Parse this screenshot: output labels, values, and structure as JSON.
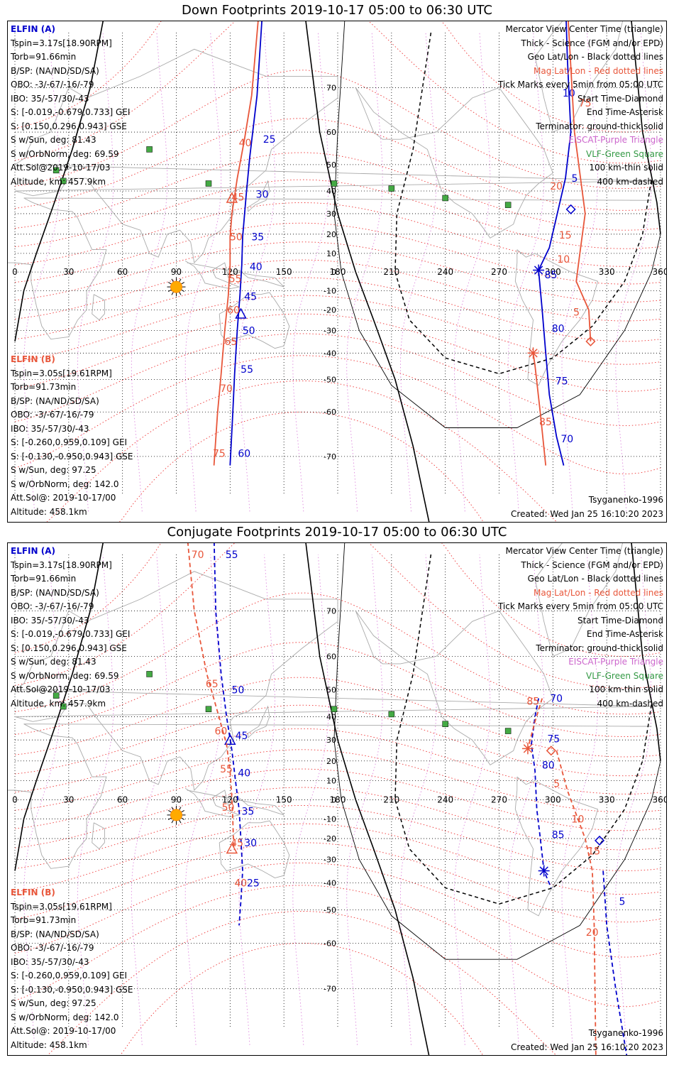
{
  "chart_data": [
    {
      "type": "map",
      "title": "Down Footprints 2019-10-17 05:00 to 06:30 UTC",
      "projection": "Mercator",
      "xlim": [
        0,
        360
      ],
      "lon_ticks": [
        "0",
        "30",
        "60",
        "90",
        "120",
        "150",
        "180",
        "210",
        "240",
        "270",
        "300",
        "330",
        "360"
      ],
      "lat_ticks": [
        "70",
        "60",
        "50",
        "40",
        "30",
        "20",
        "10",
        "0",
        "-10",
        "-20",
        "-30",
        "-40",
        "-50",
        "-60",
        "-70"
      ],
      "info_a": [
        "ELFIN (A)",
        "Tspin=3.17s[18.90RPM]",
        "Torb=91.66min",
        "B/SP: (NA/ND/SD/SA)",
        "OBO: -3/-67/-16/-79",
        "IBO: 35/-57/30/-43",
        "S: [-0.019,-0.679,0.733] GEI",
        "S: [0.150,0.296,0.943] GSE",
        "S w/Sun, deg: 81.43",
        "S w/OrbNorm, deg: 69.59",
        "Att.Sol@2019-10-17/03",
        "Altitude, km: 457.9km"
      ],
      "info_b": [
        "ELFIN (B)",
        "Tspin=3.05s[19.61RPM]",
        "Torb=91.73min",
        "B/SP: (NA/ND/SD/SA)",
        "OBO: -3/-67/-16/-79",
        "IBO: 35/-57/30/-43",
        "S: [-0.260,0.959,0.109] GEI",
        "S: [-0.130,-0.950,0.943] GSE",
        "S w/Sun, deg: 97.25",
        "S w/OrbNorm, deg: 142.0",
        "Att.Sol@: 2019-10-17/00",
        "Altitude: 458.1km"
      ],
      "legend": [
        "Mercator View Center Time (triangle)",
        "Thick - Science (FGM and/or EPD)",
        "Geo Lat/Lon - Black dotted lines",
        "Mag Lat/Lon - Red dotted lines",
        "Tick Marks every 5min from 05:00 UTC",
        "Start Time-Diamond",
        "End Time-Asterisk",
        "Terminator: ground-thick solid",
        "EISCAT-Purple Triangle",
        "VLF-Green Square",
        "100 km-thin solid",
        "400 km-dashed"
      ],
      "model": "Tsyganenko-1996",
      "created": "Created: Wed Jan 25 16:10:20 2023",
      "series": [
        {
          "name": "ELFIN (A)",
          "color": "#0000cc",
          "dashed": false,
          "points": [
            [
              120.0,
              -71.6
            ],
            [
              121.5,
              -60.3
            ],
            [
              122.5,
              -48.0
            ],
            [
              124.0,
              -30.0
            ],
            [
              125.5,
              -12.5
            ],
            [
              126.5,
              3.8
            ],
            [
              127.0,
              18.6
            ],
            [
              129.0,
              38.7
            ],
            [
              131.0,
              52.7
            ],
            [
              135.0,
              68.5
            ],
            [
              138.0,
              80.0
            ]
          ],
          "ticks": [
            [
              "60",
              122.0,
              -69.4
            ],
            [
              "55",
              123.5,
              -46.3
            ],
            [
              "50",
              124.5,
              -30.0
            ],
            [
              "45",
              125.5,
              -13.0
            ],
            [
              "40",
              128.5,
              3.0
            ],
            [
              "35",
              129.5,
              18.6
            ],
            [
              "30",
              132.0,
              38.7
            ],
            [
              "25",
              136.0,
              58.0
            ]
          ],
          "track2": [
            [
              306.0,
              85.0
            ],
            [
              308.0,
              75.0
            ],
            [
              310.0,
              60.0
            ],
            [
              307.0,
              45.0
            ],
            [
              303.0,
              32.0
            ],
            [
              298.0,
              13.0
            ],
            [
              292.0,
              1.0
            ],
            [
              294.0,
              -20.0
            ],
            [
              296.0,
              -40.0
            ],
            [
              298.0,
              -55.0
            ],
            [
              302.0,
              -66.0
            ],
            [
              306.0,
              -71.6
            ]
          ],
          "ticks2": [
            [
              "10",
              303.0,
              69.0
            ],
            [
              "5",
              308.0,
              45.0
            ],
            [
              "85",
              293.0,
              -1.5
            ],
            [
              "80",
              297.0,
              -29.0
            ],
            [
              "75",
              299.0,
              -50.5
            ],
            [
              "70",
              302.0,
              -66.5
            ]
          ],
          "start": [
            310.0,
            32.0
          ],
          "end": [
            292.0,
            1.0
          ],
          "center": [
            126.0,
            -22.0
          ]
        },
        {
          "name": "ELFIN (B)",
          "color": "#e8563a",
          "dashed": false,
          "points": [
            [
              111.0,
              -71.6
            ],
            [
              113.0,
              -60.3
            ],
            [
              115.0,
              -48.0
            ],
            [
              117.0,
              -30.0
            ],
            [
              119.0,
              -12.5
            ],
            [
              120.0,
              3.8
            ],
            [
              120.0,
              18.6
            ],
            [
              121.0,
              30.0
            ],
            [
              124.0,
              45.0
            ],
            [
              128.0,
              58.0
            ],
            [
              132.0,
              68.5
            ],
            [
              136.0,
              80.0
            ]
          ],
          "ticks": [
            [
              "75",
              108.0,
              -69.4
            ],
            [
              "70",
              112.0,
              -53.0
            ],
            [
              "65",
              114.5,
              -35.0
            ],
            [
              "60",
              116.0,
              -20.0
            ],
            [
              "55",
              117.0,
              -3.5
            ],
            [
              "50",
              117.5,
              18.6
            ],
            [
              "45",
              118.5,
              37.5
            ],
            [
              "40",
              122.5,
              57.0
            ]
          ],
          "track2": [
            [
              296.0,
              -71.6
            ],
            [
              293.0,
              -60.3
            ],
            [
              290.0,
              -45.0
            ],
            [
              289.0,
              -40.0
            ]
          ],
          "ticks2": [
            [
              "85",
              290.0,
              -62.5
            ],
            [
              "75",
              312.0,
              67.0
            ],
            [
              "20",
              296.0,
              42.0
            ],
            [
              "15",
              301.0,
              19.5
            ],
            [
              "10",
              300.0,
              7.0
            ],
            [
              "5",
              309.0,
              -21.0
            ]
          ],
          "track3": [
            [
              306.0,
              85.0
            ],
            [
              312.0,
              60.0
            ],
            [
              318.0,
              30.0
            ],
            [
              315.0,
              10.0
            ],
            [
              313.0,
              -5.0
            ],
            [
              320.0,
              -20.0
            ],
            [
              321.0,
              -35.0
            ]
          ],
          "start": [
            321.0,
            -35.0
          ],
          "end": [
            289.0,
            -40.0
          ],
          "center": [
            121.0,
            37.0
          ]
        }
      ]
    },
    {
      "type": "map",
      "title": "Conjugate Footprints 2019-10-17 05:00 to 06:30 UTC",
      "projection": "Mercator",
      "xlim": [
        0,
        360
      ],
      "lon_ticks": [
        "0",
        "30",
        "60",
        "90",
        "120",
        "150",
        "180",
        "210",
        "240",
        "270",
        "300",
        "330",
        "360"
      ],
      "lat_ticks": [
        "70",
        "60",
        "50",
        "40",
        "30",
        "20",
        "10",
        "0",
        "-10",
        "-20",
        "-30",
        "-40",
        "-50",
        "-60",
        "-70"
      ],
      "info_a": [
        "ELFIN (A)",
        "Tspin=3.17s[18.90RPM]",
        "Torb=91.66min",
        "B/SP: (NA/ND/SD/SA)",
        "OBO: -3/-67/-16/-79",
        "IBO: 35/-57/30/-43",
        "S: [-0.019,-0.679,0.733] GEI",
        "S: [0.150,0.296,0.943] GSE",
        "S w/Sun, deg: 81.43",
        "S w/OrbNorm, deg: 69.59",
        "Att.Sol@2019-10-17/03",
        "Altitude, km: 457.9km"
      ],
      "info_b": [
        "ELFIN (B)",
        "Tspin=3.05s[19.61RPM]",
        "Torb=91.73min",
        "B/SP: (NA/ND/SD/SA)",
        "OBO: -3/-67/-16/-79",
        "IBO: 35/-57/30/-43",
        "S: [-0.260,0.959,0.109] GEI",
        "S: [-0.130,-0.950,0.943] GSE",
        "S w/Sun, deg: 97.25",
        "S w/OrbNorm, deg: 142.0",
        "Att.Sol@: 2019-10-17/00",
        "Altitude: 458.1km"
      ],
      "legend": [
        "Mercator View Center Time (triangle)",
        "Thick - Science (FGM and/or EPD)",
        "Geo Lat/Lon - Black dotted lines",
        "Mag Lat/Lon - Red dotted lines",
        "Tick Marks every 5min from 05:00 UTC",
        "Start Time-Diamond",
        "End Time-Asterisk",
        "Terminator: ground-thick solid",
        "EISCAT-Purple Triangle",
        "VLF-Green Square",
        "100 km-thin solid",
        "400 km-dashed"
      ],
      "model": "Tsyganenko-1996",
      "created": "Created: Wed Jan 25 16:10:20 2023",
      "series": [
        {
          "name": "ELFIN (A)",
          "color": "#0000cc",
          "dashed": true,
          "points": [
            [
              111.0,
              80.0
            ],
            [
              112.0,
              70.0
            ],
            [
              115.0,
              55.0
            ],
            [
              118.0,
              40.0
            ],
            [
              121.0,
              25.0
            ],
            [
              123.0,
              10.0
            ],
            [
              125.0,
              -5.0
            ],
            [
              126.0,
              -20.0
            ],
            [
              127.0,
              -35.0
            ],
            [
              126.0,
              -47.0
            ],
            [
              125.0,
              -55.0
            ]
          ],
          "ticks": [
            [
              "55",
              115.0,
              78.0
            ],
            [
              "50",
              118.5,
              50.0
            ],
            [
              "45",
              120.5,
              32.0
            ],
            [
              "40",
              122.0,
              14.0
            ],
            [
              "35",
              124.0,
              -6.0
            ],
            [
              "30",
              125.5,
              -22.0
            ],
            [
              "25",
              127.0,
              -40.0
            ]
          ],
          "track2": [
            [
              292.0,
              47.0
            ],
            [
              290.0,
              40.0
            ],
            [
              288.0,
              28.0
            ],
            [
              290.0,
              15.0
            ],
            [
              291.0,
              -5.0
            ],
            [
              293.0,
              -20.0
            ],
            [
              295.0,
              -35.0
            ],
            [
              299.0,
              -42.0
            ]
          ],
          "ticks2": [
            [
              "70",
              296.0,
              47.0
            ],
            [
              "75",
              294.5,
              30.5
            ],
            [
              "80",
              291.5,
              18.0
            ],
            [
              "85",
              297.0,
              -18.0
            ],
            [
              "5",
              334.5,
              -47.0
            ]
          ],
          "track3": [
            [
              328.0,
              -35.0
            ],
            [
              330.0,
              -55.0
            ],
            [
              335.0,
              -70.0
            ],
            [
              342.0,
              -80.0
            ]
          ],
          "start": [
            326.0,
            -21.0
          ],
          "end": [
            295.0,
            -35.0
          ],
          "center": [
            120.0,
            30.0
          ]
        },
        {
          "name": "ELFIN (B)",
          "color": "#e8563a",
          "dashed": true,
          "points": [
            [
              96.0,
              80.0
            ],
            [
              100.0,
              70.0
            ],
            [
              107.0,
              55.0
            ],
            [
              113.0,
              42.0
            ],
            [
              118.0,
              28.0
            ],
            [
              120.0,
              15.0
            ],
            [
              121.0,
              0.0
            ],
            [
              121.5,
              -10.0
            ],
            [
              122.0,
              -25.0
            ]
          ],
          "ticks": [
            [
              "70",
              96.0,
              78.0
            ],
            [
              "65",
              104.0,
              52.0
            ],
            [
              "60",
              109.0,
              34.0
            ],
            [
              "55",
              112.0,
              16.0
            ],
            [
              "50",
              113.0,
              -4.0
            ],
            [
              "45",
              118.0,
              -22.0
            ],
            [
              "40",
              120.0,
              -40.0
            ]
          ],
          "track2": [
            [
              294.0,
              47.0
            ],
            [
              290.0,
              38.0
            ],
            [
              286.0,
              26.0
            ]
          ],
          "ticks2": [
            [
              "85",
              283.0,
              46.0
            ],
            [
              "5",
              298.0,
              8.5
            ],
            [
              "10",
              308.0,
              -10.0
            ],
            [
              "15",
              317.0,
              -26.0
            ],
            [
              "20",
              316.0,
              -57.0
            ]
          ],
          "track3": [
            [
              302.0,
              25.0
            ],
            [
              308.0,
              5.0
            ],
            [
              318.0,
              -20.0
            ],
            [
              322.0,
              -35.0
            ],
            [
              323.0,
              -55.0
            ],
            [
              324.0,
              -80.0
            ]
          ],
          "start": [
            299.0,
            25.0
          ],
          "end": [
            286.0,
            26.0
          ],
          "center": [
            121.0,
            -25.0
          ]
        }
      ]
    }
  ]
}
